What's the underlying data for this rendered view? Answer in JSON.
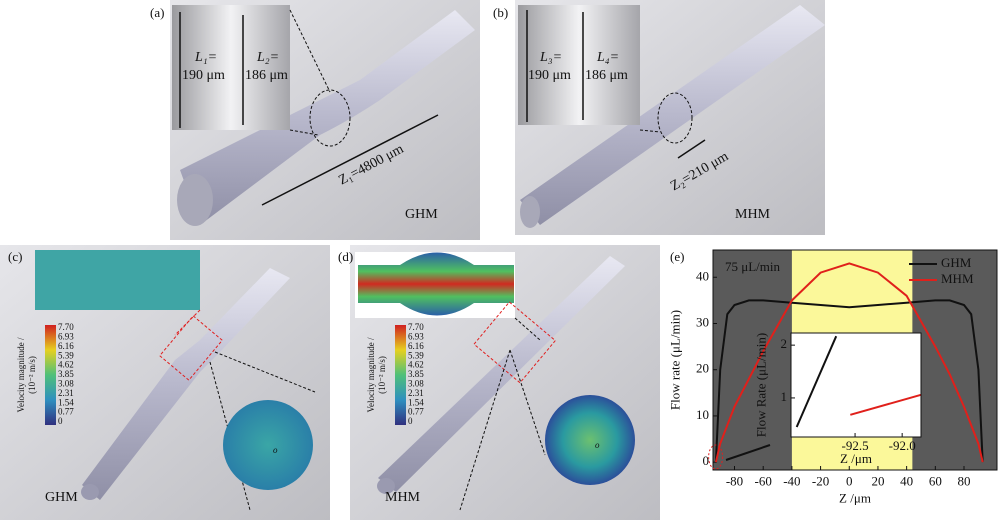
{
  "panels": {
    "a": {
      "label": "(a)",
      "l1": "L₁=",
      "l1_value": "190 μm",
      "l2": "L₂=",
      "l2_value": "186 μm",
      "z": "Z₁=4800 μm",
      "name": "GHM"
    },
    "b": {
      "label": "(b)",
      "l3": "L₃=",
      "l3_value": "190 μm",
      "l4": "L₄=",
      "l4_value": "186 μm",
      "z": "Z₂=210 μm",
      "name": "MHM"
    },
    "c": {
      "label": "(c)",
      "colorbar_label": "Velocity magnitude /",
      "colorbar_unit": "(10⁻² m/s)",
      "colorbar_ticks": [
        "7.70",
        "6.93",
        "6.16",
        "5.39",
        "4.62",
        "3.85",
        "3.08",
        "2.31",
        "1.54",
        "0.77",
        "0"
      ],
      "origin": "o",
      "name": "GHM"
    },
    "d": {
      "label": "(d)",
      "colorbar_label": "Velocity magnitude /",
      "colorbar_unit": "(10⁻² m/s)",
      "colorbar_ticks": [
        "7.70",
        "6.93",
        "6.16",
        "5.39",
        "4.62",
        "3.85",
        "3.08",
        "2.31",
        "1.54",
        "0.77",
        "0"
      ],
      "origin": "o",
      "name": "MHM"
    },
    "e": {
      "label": "(e)"
    }
  },
  "chart_data": [
    {
      "type": "line",
      "annotation": "75 μL/min",
      "x_label": "Z /μm",
      "y_label": "Flow rate (μL/min)",
      "x": [
        -93,
        -90,
        -85,
        -80,
        -70,
        -60,
        -40,
        -20,
        0,
        20,
        40,
        60,
        70,
        80,
        85,
        90,
        93
      ],
      "series": [
        {
          "name": "GHM",
          "color": "#111111",
          "values": [
            0,
            20,
            32,
            34,
            35,
            35,
            34.5,
            34,
            33.5,
            34,
            34.5,
            35,
            35,
            34,
            32,
            20,
            0
          ]
        },
        {
          "name": "MHM",
          "color": "#e0201b",
          "values": [
            0,
            4,
            8,
            12,
            18,
            24,
            35,
            41,
            43,
            41,
            36,
            25,
            19,
            12,
            8,
            4,
            0
          ]
        }
      ],
      "xlim": [
        -95,
        103
      ],
      "ylim": [
        -1.7,
        45.9
      ],
      "xticks": [
        -80,
        -60,
        -40,
        -20,
        0,
        20,
        40,
        60,
        80
      ],
      "yticks": [
        0,
        10,
        20,
        30,
        40
      ],
      "background": "#5a5a5a",
      "highlight": {
        "from": -40,
        "to": 44,
        "color": "#fbf89a"
      },
      "legend": "upper right"
    },
    {
      "type": "line",
      "x_label": "Z /μm",
      "y_label": "Flow Rate (μL/min)",
      "series": [
        {
          "color": "#111111",
          "x": [
            -93.12,
            -92.7
          ],
          "values": [
            0.45,
            2.17
          ]
        },
        {
          "color": "#e0201b",
          "x": [
            -92.55,
            -91.8
          ],
          "values": [
            0.68,
            1.06
          ]
        }
      ],
      "xlim": [
        -93.18,
        -91.8
      ],
      "ylim": [
        0.26,
        2.23
      ],
      "xticks": [
        -92.5,
        {
          "value": -92,
          "label": "-92.0"
        }
      ],
      "yticks": [
        1,
        2
      ],
      "background": "#ffffff"
    }
  ]
}
